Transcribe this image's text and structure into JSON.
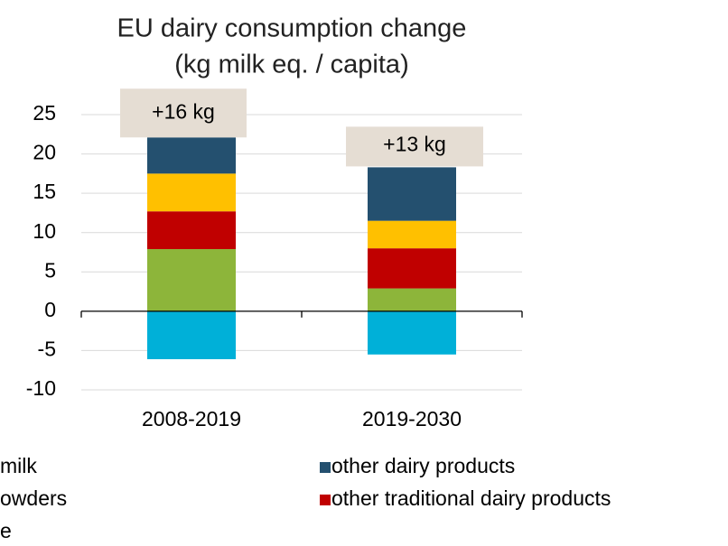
{
  "chart_data": {
    "type": "stacked_bar",
    "title": "EU dairy consumption change",
    "subtitle": "(kg milk eq. / capita)",
    "categories": [
      "2008-2019",
      "2019-2030"
    ],
    "series": [
      {
        "name": "milk",
        "color": "#00b0d8",
        "values": [
          -6.1,
          -5.5
        ]
      },
      {
        "name": "e",
        "color": "#8db53a",
        "values": [
          7.9,
          2.9
        ]
      },
      {
        "name": "other traditional dairy products",
        "color": "#c00000",
        "values": [
          4.8,
          5.1
        ]
      },
      {
        "name": "owders",
        "color": "#ffc000",
        "values": [
          4.8,
          3.5
        ]
      },
      {
        "name": "other dairy products",
        "color": "#24506f",
        "values": [
          4.6,
          6.8
        ]
      }
    ],
    "annotations": [
      "+16 kg",
      "+13 kg"
    ],
    "ylim": [
      -10,
      25
    ],
    "yticks": [
      -10,
      -5,
      0,
      5,
      10,
      15,
      20,
      25
    ],
    "grid": true
  }
}
